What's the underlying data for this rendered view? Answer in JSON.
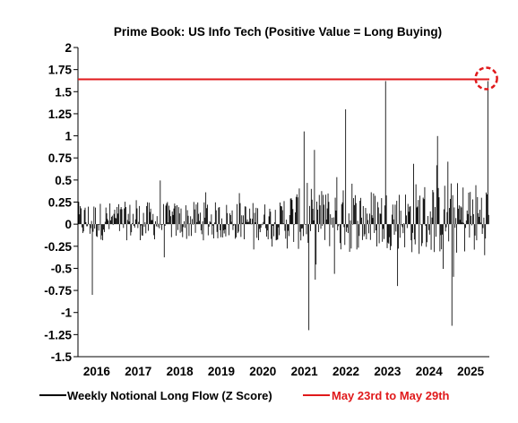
{
  "chart_data": {
    "type": "bar",
    "title": "Prime Book: US Info Tech (Positive Value = Long Buying)",
    "xlabel": "",
    "ylabel": "",
    "ylim": [
      -1.5,
      2
    ],
    "xlim": [
      2015.55,
      2025.45
    ],
    "yticks": [
      "2",
      "1.75",
      "1.5",
      "1.25",
      "1",
      "0.75",
      "0.5",
      "0.25",
      "0",
      "-0.25",
      "-0.5",
      "-0.75",
      "-1",
      "-1.25",
      "-1.5"
    ],
    "xticks": [
      "2016",
      "2017",
      "2018",
      "2019",
      "2020",
      "2021",
      "2022",
      "2023",
      "2024",
      "2025"
    ],
    "grid": false,
    "legend_position": "bottom",
    "series": [
      {
        "name": "Weekly Notional Long Flow (Z Score)",
        "color": "#000000",
        "notes": "weekly bars, values approximated from the picture; highlights below",
        "highlights": [
          {
            "x": 2015.9,
            "y": -0.8
          },
          {
            "x": 2021.1,
            "y": -1.2
          },
          {
            "x": 2021.0,
            "y": 1.05
          },
          {
            "x": 2022.0,
            "y": 1.3
          },
          {
            "x": 2022.95,
            "y": 1.62
          },
          {
            "x": 2023.25,
            "y": -0.7
          },
          {
            "x": 2024.55,
            "y": -1.15
          },
          {
            "x": 2025.42,
            "y": 1.62
          }
        ]
      },
      {
        "name": "May 23rd to May 29th",
        "color": "#e0191b",
        "y": 1.64
      }
    ]
  },
  "legend": {
    "item1": "Weekly Notional Long Flow (Z Score)",
    "item2": "May 23rd to May 29th"
  },
  "colors": {
    "bars": "#000000",
    "reference_line": "#e0191b",
    "axis": "#000000"
  }
}
